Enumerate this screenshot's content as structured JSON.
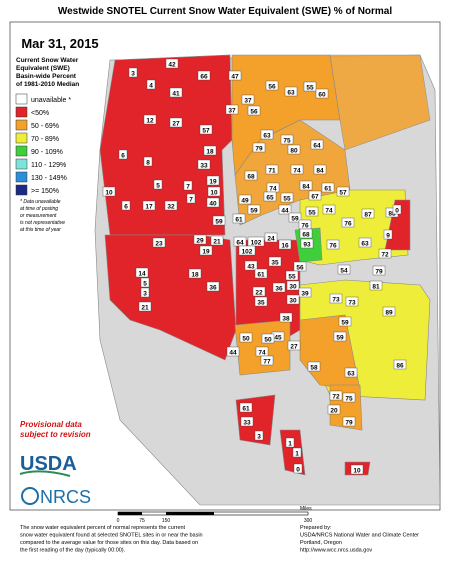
{
  "title": "Westwide SNOTEL Current Snow Water Equivalent (SWE) % of Normal",
  "date": "Mar 31, 2015",
  "legend": {
    "title": [
      "Current Snow Water",
      "Equivalent (SWE)",
      "Basin-wide Percent",
      "of 1981-2010 Median"
    ],
    "entries": [
      {
        "label": "unavailable *",
        "color": "#ffffff"
      },
      {
        "label": "<50%",
        "color": "#e0242a"
      },
      {
        "label": "50 - 69%",
        "color": "#f3a12b"
      },
      {
        "label": "70 - 89%",
        "color": "#eeee3a"
      },
      {
        "label": "90 - 109%",
        "color": "#3fcf3a"
      },
      {
        "label": "110 - 129%",
        "color": "#7fe3dc"
      },
      {
        "label": "130 - 149%",
        "color": "#2a8fd8"
      },
      {
        "label": ">= 150%",
        "color": "#1b2a85"
      }
    ],
    "note": [
      "* Data unavailable",
      "at time of posting",
      "or measurement",
      "is not representative",
      "at this time of year"
    ]
  },
  "provisional": [
    "Provisional data",
    "subject to revision"
  ],
  "logos": {
    "usda": "USDA",
    "nrcs": "NRCS"
  },
  "scale": {
    "ticks": [
      "0",
      "75",
      "150",
      "300"
    ],
    "unit": "Miles"
  },
  "footer_left": [
    "The snow water equivalent percent of normal represents the current",
    "snow water equivalent found at selected SNOTEL sites in or near the basin",
    "compared to the average value for those sites on this day. Data based on",
    "the first reading of the day (typically 00:00)."
  ],
  "footer_right": [
    "Prepared by:",
    "USDA/NRCS National Water and Climate Center",
    "Portland, Oregon",
    "http://www.wcc.nrcs.usda.gov"
  ],
  "basins": [
    42,
    3,
    4,
    41,
    66,
    47,
    56,
    63,
    55,
    60,
    37,
    37,
    56,
    12,
    27,
    57,
    63,
    79,
    75,
    64,
    80,
    84,
    6,
    8,
    18,
    33,
    71,
    74,
    7,
    5,
    74,
    84,
    67,
    61,
    57,
    10,
    6,
    17,
    32,
    7,
    49,
    19,
    10,
    40,
    68,
    59,
    65,
    55,
    44,
    59,
    55,
    76,
    68,
    87,
    88,
    0,
    9,
    74,
    61,
    59,
    64,
    102,
    102,
    29,
    21,
    23,
    24,
    16,
    93,
    76,
    76,
    63,
    72,
    79,
    81,
    54,
    56,
    55,
    19,
    18,
    36,
    14,
    5,
    3,
    21,
    43,
    35,
    61,
    22,
    36,
    30,
    39,
    30,
    35,
    38,
    73,
    73,
    89,
    59,
    59,
    45,
    50,
    50,
    27,
    74,
    77,
    44,
    86,
    58,
    63,
    61,
    33,
    3,
    1,
    1,
    0,
    20,
    72,
    75,
    79,
    10
  ]
}
